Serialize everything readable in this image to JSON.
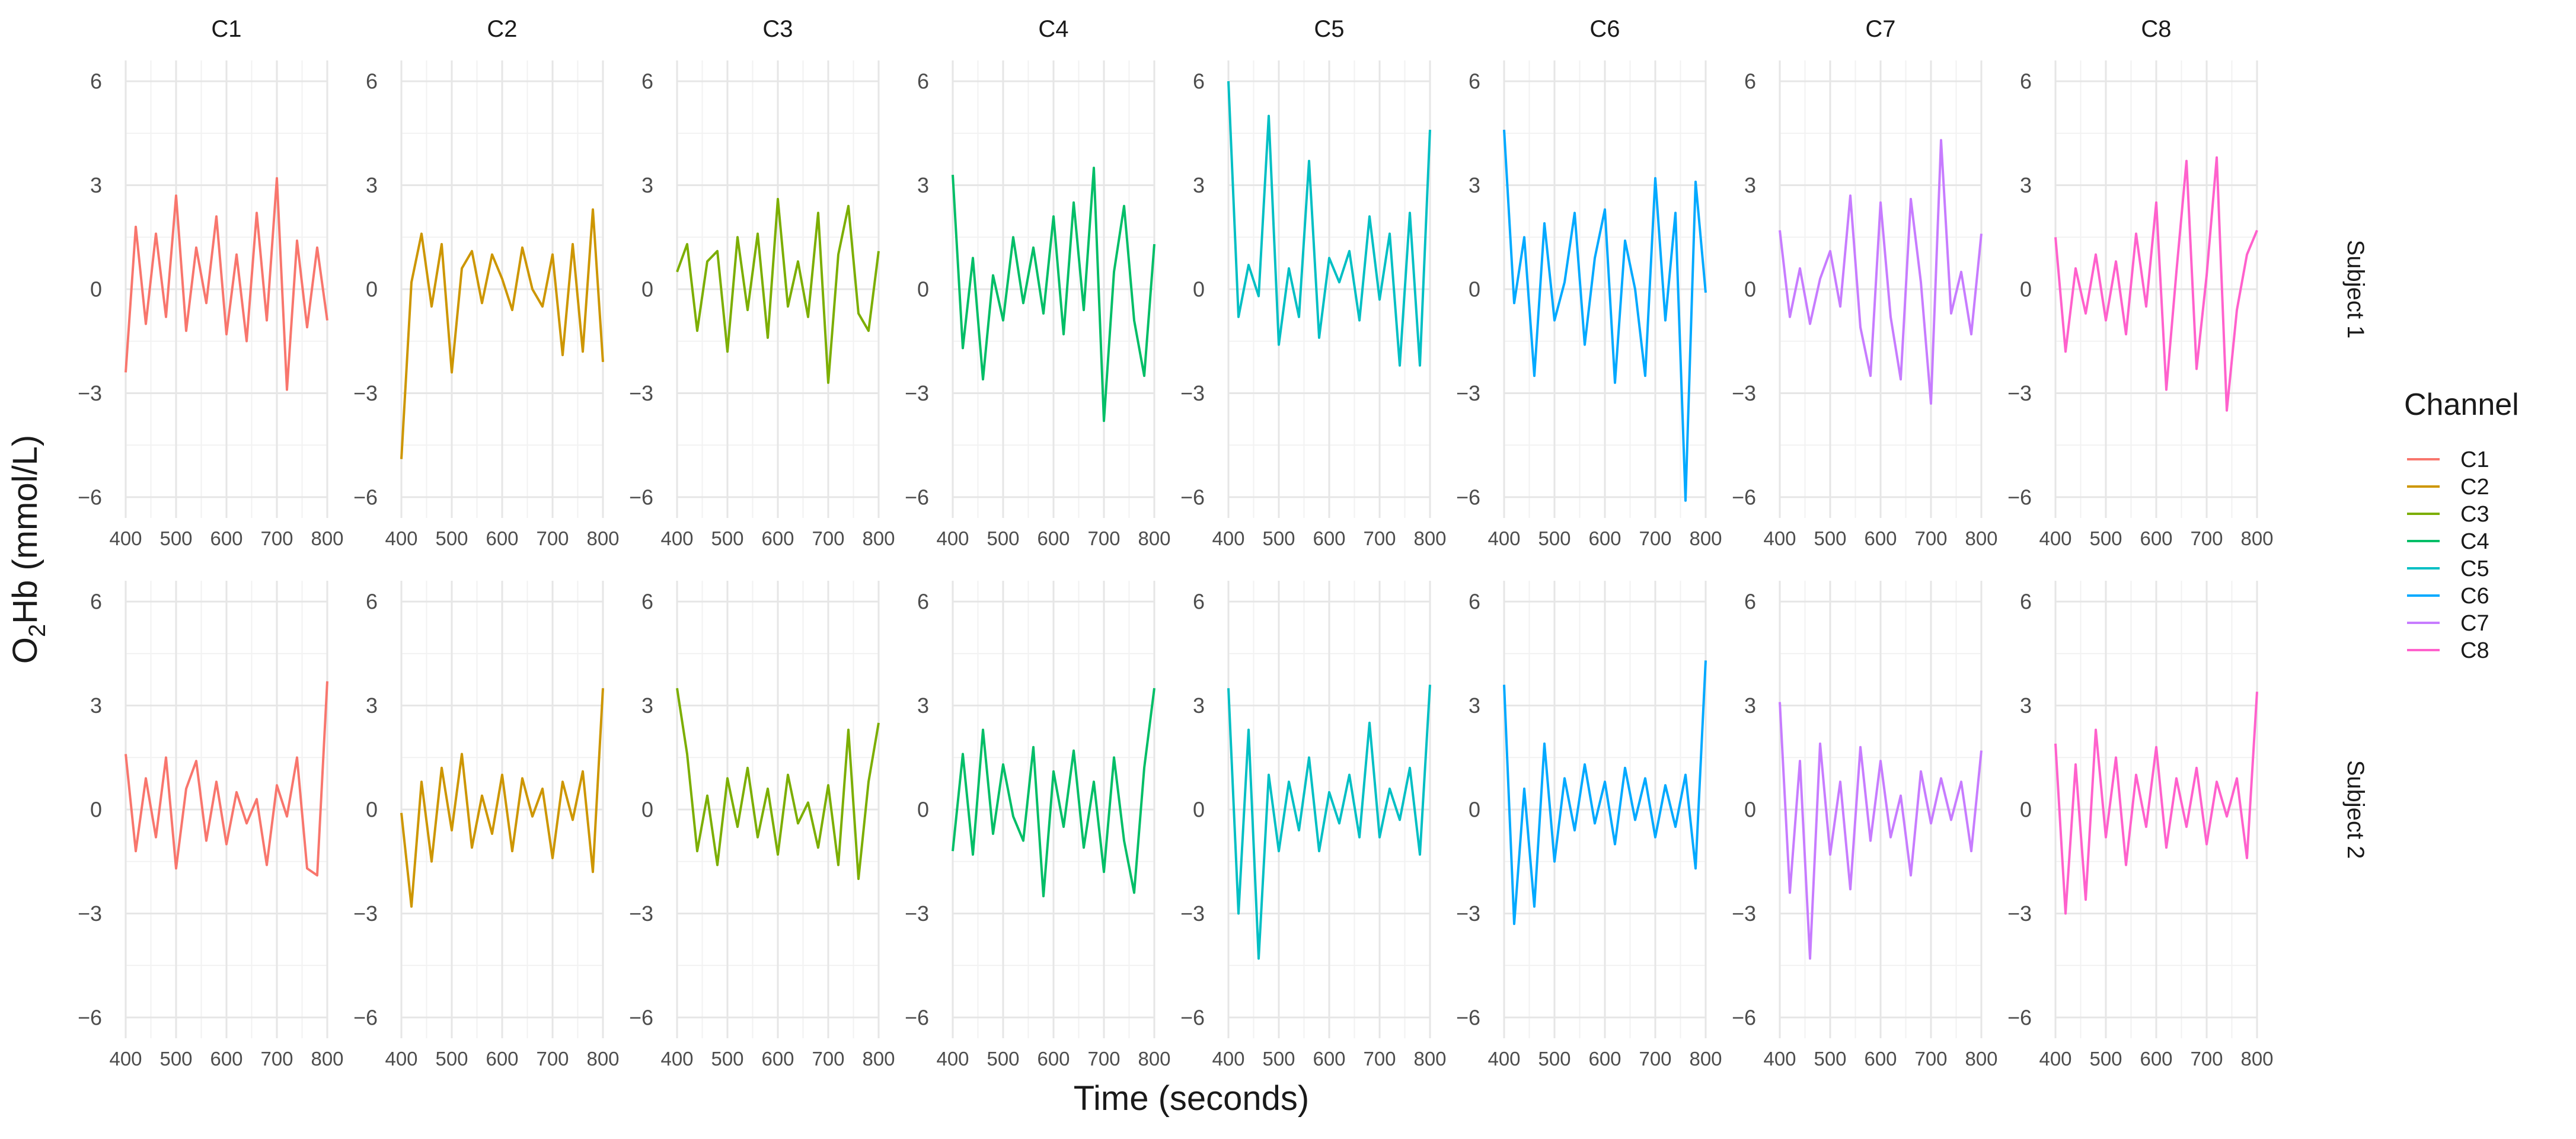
{
  "chart_data": {
    "type": "line",
    "layout": "facet grid (rows = subjects, columns = channels)",
    "xlabel": "Time (seconds)",
    "ylabel_main": "O",
    "ylabel_sub": "2",
    "ylabel_rest": "Hb (mmol/L)",
    "xlim": [
      400,
      800
    ],
    "ylim": [
      -6.6,
      6.6
    ],
    "x_ticks": [
      400,
      500,
      600,
      700,
      800
    ],
    "y_ticks": [
      -6,
      -3,
      0,
      3,
      6
    ],
    "grid": true,
    "legend": {
      "title": "Channel",
      "placement": "right",
      "entries": [
        "C1",
        "C2",
        "C3",
        "C4",
        "C5",
        "C6",
        "C7",
        "C8"
      ]
    },
    "columns": [
      "C1",
      "C2",
      "C3",
      "C4",
      "C5",
      "C6",
      "C7",
      "C8"
    ],
    "rows": [
      "Subject 1",
      "Subject 2"
    ],
    "colors": {
      "C1": "#F8766D",
      "C2": "#CD9600",
      "C3": "#7CAE00",
      "C4": "#00BE67",
      "C5": "#00BFC4",
      "C6": "#00A9FF",
      "C7": "#C77CFF",
      "C8": "#FF61CC"
    },
    "x_sample": [
      400,
      420,
      440,
      460,
      480,
      500,
      520,
      540,
      560,
      580,
      600,
      620,
      640,
      660,
      680,
      700,
      720,
      740,
      760,
      780,
      800
    ],
    "series": [
      {
        "subject": "Subject 1",
        "channel": "C1",
        "values": [
          -2.4,
          1.8,
          -1.0,
          1.6,
          -0.8,
          2.7,
          -1.2,
          1.2,
          -0.4,
          2.1,
          -1.3,
          1.0,
          -1.5,
          2.2,
          -0.9,
          3.2,
          -2.9,
          1.4,
          -1.1,
          1.2,
          -0.9
        ]
      },
      {
        "subject": "Subject 1",
        "channel": "C2",
        "values": [
          -4.9,
          0.2,
          1.6,
          -0.5,
          1.3,
          -2.4,
          0.6,
          1.1,
          -0.4,
          1.0,
          0.3,
          -0.6,
          1.2,
          0.0,
          -0.5,
          1.0,
          -1.9,
          1.3,
          -1.8,
          2.3,
          -2.1
        ]
      },
      {
        "subject": "Subject 1",
        "channel": "C3",
        "values": [
          0.5,
          1.3,
          -1.2,
          0.8,
          1.1,
          -1.8,
          1.5,
          -0.6,
          1.6,
          -1.4,
          2.6,
          -0.5,
          0.8,
          -0.8,
          2.2,
          -2.7,
          1.0,
          2.4,
          -0.7,
          -1.2,
          1.1
        ]
      },
      {
        "subject": "Subject 1",
        "channel": "C4",
        "values": [
          3.3,
          -1.7,
          0.9,
          -2.6,
          0.4,
          -0.9,
          1.5,
          -0.4,
          1.2,
          -0.7,
          2.1,
          -1.3,
          2.5,
          -0.6,
          3.5,
          -3.8,
          0.5,
          2.4,
          -0.9,
          -2.5,
          1.3
        ]
      },
      {
        "subject": "Subject 1",
        "channel": "C5",
        "values": [
          6.0,
          -0.8,
          0.7,
          -0.2,
          5.0,
          -1.6,
          0.6,
          -0.8,
          3.7,
          -1.4,
          0.9,
          0.2,
          1.1,
          -0.9,
          2.1,
          -0.3,
          1.6,
          -2.2,
          2.2,
          -2.2,
          4.6
        ]
      },
      {
        "subject": "Subject 1",
        "channel": "C6",
        "values": [
          4.6,
          -0.4,
          1.5,
          -2.5,
          1.9,
          -0.9,
          0.2,
          2.2,
          -1.6,
          0.9,
          2.3,
          -2.7,
          1.4,
          0.0,
          -2.5,
          3.2,
          -0.9,
          2.2,
          -6.1,
          3.1,
          -0.1
        ]
      },
      {
        "subject": "Subject 1",
        "channel": "C7",
        "values": [
          1.7,
          -0.8,
          0.6,
          -1.0,
          0.3,
          1.1,
          -0.5,
          2.7,
          -1.1,
          -2.5,
          2.5,
          -0.8,
          -2.6,
          2.6,
          0.2,
          -3.3,
          4.3,
          -0.7,
          0.5,
          -1.3,
          1.6
        ]
      },
      {
        "subject": "Subject 1",
        "channel": "C8",
        "values": [
          1.5,
          -1.8,
          0.6,
          -0.7,
          1.0,
          -0.9,
          0.8,
          -1.3,
          1.6,
          -0.5,
          2.5,
          -2.9,
          0.5,
          3.7,
          -2.3,
          0.4,
          3.8,
          -3.5,
          -0.6,
          1.0,
          1.7
        ]
      },
      {
        "subject": "Subject 2",
        "channel": "C1",
        "values": [
          1.6,
          -1.2,
          0.9,
          -0.8,
          1.5,
          -1.7,
          0.6,
          1.4,
          -0.9,
          0.8,
          -1.0,
          0.5,
          -0.4,
          0.3,
          -1.6,
          0.7,
          -0.2,
          1.5,
          -1.7,
          -1.9,
          3.7
        ]
      },
      {
        "subject": "Subject 2",
        "channel": "C2",
        "values": [
          -0.1,
          -2.8,
          0.8,
          -1.5,
          1.2,
          -0.6,
          1.6,
          -1.1,
          0.4,
          -0.7,
          1.0,
          -1.2,
          0.9,
          -0.2,
          0.6,
          -1.4,
          0.8,
          -0.3,
          1.1,
          -1.8,
          3.5
        ]
      },
      {
        "subject": "Subject 2",
        "channel": "C3",
        "values": [
          3.5,
          1.6,
          -1.2,
          0.4,
          -1.6,
          0.9,
          -0.5,
          1.2,
          -0.8,
          0.6,
          -1.3,
          1.0,
          -0.4,
          0.2,
          -1.1,
          0.7,
          -1.6,
          2.3,
          -2.0,
          0.8,
          2.5
        ]
      },
      {
        "subject": "Subject 2",
        "channel": "C4",
        "values": [
          -1.2,
          1.6,
          -1.3,
          2.3,
          -0.7,
          1.3,
          -0.2,
          -0.9,
          1.8,
          -2.5,
          1.1,
          -0.5,
          1.7,
          -1.1,
          0.8,
          -1.8,
          1.5,
          -0.9,
          -2.4,
          1.2,
          3.5
        ]
      },
      {
        "subject": "Subject 2",
        "channel": "C5",
        "values": [
          3.5,
          -3.0,
          2.3,
          -4.3,
          1.0,
          -1.2,
          0.8,
          -0.6,
          1.5,
          -1.2,
          0.5,
          -0.4,
          1.0,
          -0.8,
          2.5,
          -0.8,
          0.6,
          -0.3,
          1.2,
          -1.3,
          3.6
        ]
      },
      {
        "subject": "Subject 2",
        "channel": "C6",
        "values": [
          3.6,
          -3.3,
          0.6,
          -2.8,
          1.9,
          -1.5,
          0.9,
          -0.6,
          1.3,
          -0.4,
          0.8,
          -1.0,
          1.2,
          -0.3,
          0.9,
          -0.8,
          0.7,
          -0.5,
          1.0,
          -1.7,
          4.3
        ]
      },
      {
        "subject": "Subject 2",
        "channel": "C7",
        "values": [
          3.1,
          -2.4,
          1.4,
          -4.3,
          1.9,
          -1.3,
          0.8,
          -2.3,
          1.8,
          -0.9,
          1.4,
          -0.8,
          0.4,
          -1.9,
          1.1,
          -0.4,
          0.9,
          -0.3,
          0.8,
          -1.2,
          1.7
        ]
      },
      {
        "subject": "Subject 2",
        "channel": "C8",
        "values": [
          1.9,
          -3.0,
          1.3,
          -2.6,
          2.3,
          -0.8,
          1.5,
          -1.6,
          1.0,
          -0.5,
          1.8,
          -1.1,
          0.9,
          -0.5,
          1.2,
          -1.0,
          0.8,
          -0.2,
          0.9,
          -1.4,
          3.4
        ]
      }
    ]
  }
}
